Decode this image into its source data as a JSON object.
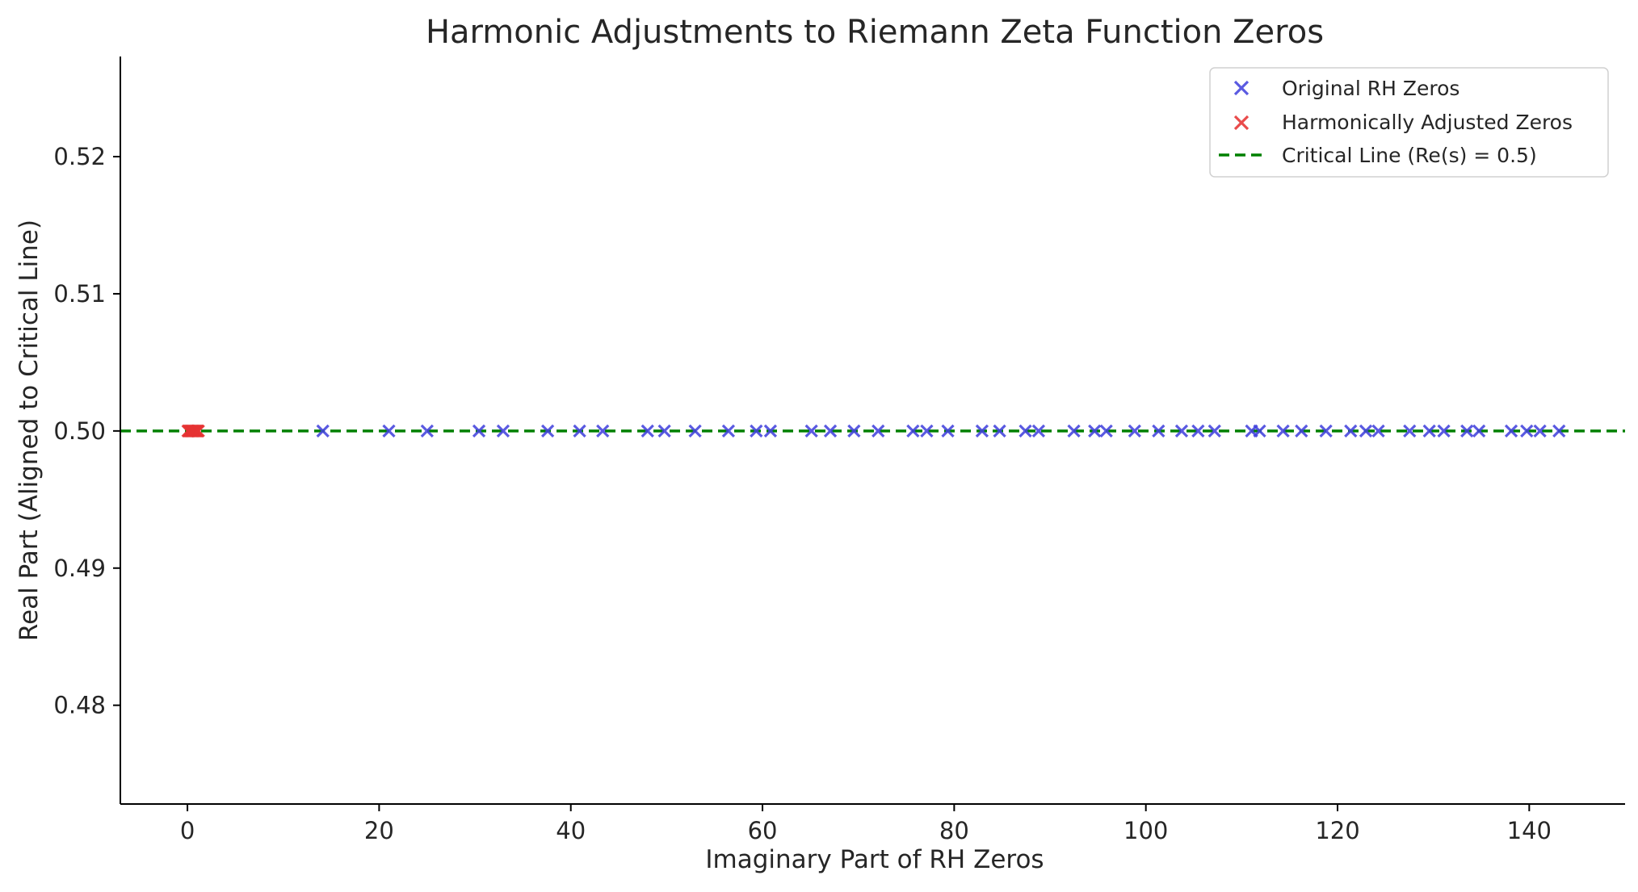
{
  "chart_data": {
    "type": "scatter",
    "title": "Harmonic Adjustments to Riemann Zeta Function Zeros",
    "xlabel": "Imaginary Part of RH Zeros",
    "ylabel": "Real Part (Aligned to Critical Line)",
    "xlim": [
      -7,
      150
    ],
    "ylim": [
      0.4728,
      0.5273
    ],
    "xticks": [
      0,
      20,
      40,
      60,
      80,
      100,
      120,
      140
    ],
    "xtick_labels": [
      "0",
      "20",
      "40",
      "60",
      "80",
      "100",
      "120",
      "140"
    ],
    "yticks": [
      0.48,
      0.49,
      0.5,
      0.51,
      0.52
    ],
    "ytick_labels": [
      "0.48",
      "0.49",
      "0.50",
      "0.51",
      "0.52"
    ],
    "grid": false,
    "legend_position": "top-right",
    "colors": {
      "original": "#4444dd",
      "adjusted": "#e63333",
      "critical_line": "#008000",
      "axis": "#000000"
    },
    "series": [
      {
        "name": "Original RH Zeros",
        "marker": "x",
        "x": [
          14.13,
          21.02,
          25.01,
          30.42,
          32.94,
          37.59,
          40.92,
          43.33,
          48.01,
          49.77,
          52.97,
          56.45,
          59.35,
          60.83,
          65.11,
          67.08,
          69.55,
          72.07,
          75.7,
          77.14,
          79.34,
          82.91,
          84.74,
          87.43,
          88.81,
          92.49,
          94.65,
          95.87,
          98.83,
          101.32,
          103.73,
          105.45,
          107.17,
          111.03,
          111.87,
          114.32,
          116.23,
          118.79,
          121.37,
          122.95,
          124.26,
          127.52,
          129.58,
          131.09,
          133.5,
          134.76,
          138.12,
          139.74,
          141.12,
          143.11
        ],
        "y": [
          0.5,
          0.5,
          0.5,
          0.5,
          0.5,
          0.5,
          0.5,
          0.5,
          0.5,
          0.5,
          0.5,
          0.5,
          0.5,
          0.5,
          0.5,
          0.5,
          0.5,
          0.5,
          0.5,
          0.5,
          0.5,
          0.5,
          0.5,
          0.5,
          0.5,
          0.5,
          0.5,
          0.5,
          0.5,
          0.5,
          0.5,
          0.5,
          0.5,
          0.5,
          0.5,
          0.5,
          0.5,
          0.5,
          0.5,
          0.5,
          0.5,
          0.5,
          0.5,
          0.5,
          0.5,
          0.5,
          0.5,
          0.5,
          0.5,
          0.5
        ]
      },
      {
        "name": "Harmonically Adjusted Zeros",
        "marker": "x",
        "x": [
          0.05,
          0.15,
          0.25,
          0.35,
          0.45,
          0.55,
          0.65,
          0.75,
          0.85,
          0.95,
          1.05,
          1.15
        ],
        "y": [
          0.5,
          0.5,
          0.5,
          0.5,
          0.5,
          0.5,
          0.5,
          0.5,
          0.5,
          0.5,
          0.5,
          0.5
        ]
      }
    ],
    "reference_lines": [
      {
        "name": "Critical Line (Re(s) = 0.5)",
        "orientation": "horizontal",
        "y": 0.5,
        "style": "dashed"
      }
    ]
  }
}
